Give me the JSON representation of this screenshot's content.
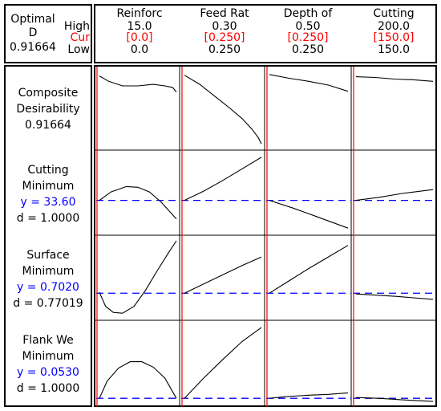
{
  "header": {
    "label_optimal": "Optimal",
    "label_d": "D",
    "d_value": "0.91664",
    "label_high": "High",
    "label_cur": "Cur",
    "label_low": "Low"
  },
  "factors": [
    {
      "name": "Reinforc",
      "high": "15.0",
      "cur": "[0.0]",
      "low": "0.0"
    },
    {
      "name": "Feed Rat",
      "high": "0.30",
      "cur": "[0.250]",
      "low": "0.250"
    },
    {
      "name": "Depth of",
      "high": "0.50",
      "cur": "[0.250]",
      "low": "0.250"
    },
    {
      "name": "Cutting",
      "high": "200.0",
      "cur": "[150.0]",
      "low": "150.0"
    }
  ],
  "rows": [
    {
      "lines": [
        "Composite",
        "Desirability",
        "0.91664"
      ],
      "y_label": "",
      "d_label": ""
    },
    {
      "lines": [
        "Cutting",
        "Minimum"
      ],
      "y_label": "y = 33.60",
      "d_label": "d = 1.0000"
    },
    {
      "lines": [
        "Surface",
        "Minimum"
      ],
      "y_label": "y = 0.7020",
      "d_label": "d = 0.77019"
    },
    {
      "lines": [
        "Flank We",
        "Minimum"
      ],
      "y_label": "y = 0.0530",
      "d_label": "d = 1.0000"
    }
  ],
  "colors": {
    "current": "#ff0000",
    "target": "#0000ff",
    "line": "#000000"
  },
  "chart_data": {
    "type": "line",
    "title": "",
    "factor_high": [
      15.0,
      0.3,
      0.5,
      200.0
    ],
    "factor_low": [
      0.0,
      0.25,
      0.25,
      150.0
    ],
    "factor_current": [
      0.0,
      0.25,
      0.25,
      150.0
    ],
    "panels": [
      [
        {
          "curve": [
            [
              0,
              0.93
            ],
            [
              0.12,
              0.86
            ],
            [
              0.3,
              0.8
            ],
            [
              0.5,
              0.8
            ],
            [
              0.7,
              0.82
            ],
            [
              0.85,
              0.8
            ],
            [
              0.95,
              0.78
            ],
            [
              1,
              0.72
            ]
          ]
        },
        {
          "curve": [
            [
              0,
              0.94
            ],
            [
              0.2,
              0.82
            ],
            [
              0.4,
              0.66
            ],
            [
              0.6,
              0.5
            ],
            [
              0.75,
              0.37
            ],
            [
              0.88,
              0.23
            ],
            [
              0.96,
              0.12
            ],
            [
              1,
              0.04
            ]
          ]
        },
        {
          "curve": [
            [
              0,
              0.95
            ],
            [
              0.25,
              0.9
            ],
            [
              0.5,
              0.86
            ],
            [
              0.75,
              0.81
            ],
            [
              1,
              0.73
            ]
          ]
        },
        {
          "curve": [
            [
              0,
              0.92
            ],
            [
              0.25,
              0.91
            ],
            [
              0.5,
              0.89
            ],
            [
              0.75,
              0.88
            ],
            [
              1,
              0.86
            ]
          ]
        }
      ],
      [
        {
          "curve": [
            [
              0,
              0.41
            ],
            [
              0.15,
              0.52
            ],
            [
              0.35,
              0.59
            ],
            [
              0.5,
              0.58
            ],
            [
              0.65,
              0.52
            ],
            [
              0.8,
              0.39
            ],
            [
              1,
              0.17
            ]
          ],
          "target": 0.41
        },
        {
          "curve": [
            [
              0,
              0.41
            ],
            [
              0.25,
              0.53
            ],
            [
              0.5,
              0.67
            ],
            [
              0.75,
              0.82
            ],
            [
              1,
              0.97
            ]
          ],
          "target": 0.41
        },
        {
          "curve": [
            [
              0,
              0.41
            ],
            [
              0.3,
              0.31
            ],
            [
              0.6,
              0.2
            ],
            [
              1,
              0.05
            ]
          ],
          "target": 0.41
        },
        {
          "curve": [
            [
              0,
              0.41
            ],
            [
              0.3,
              0.45
            ],
            [
              0.6,
              0.5
            ],
            [
              1,
              0.55
            ]
          ],
          "target": 0.41
        }
      ],
      [
        {
          "curve": [
            [
              0,
              0.32
            ],
            [
              0.08,
              0.14
            ],
            [
              0.18,
              0.06
            ],
            [
              0.3,
              0.05
            ],
            [
              0.45,
              0.14
            ],
            [
              0.6,
              0.35
            ],
            [
              0.75,
              0.6
            ],
            [
              0.9,
              0.84
            ],
            [
              1,
              0.99
            ]
          ],
          "target": 0.31
        },
        {
          "curve": [
            [
              0,
              0.31
            ],
            [
              0.25,
              0.43
            ],
            [
              0.5,
              0.55
            ],
            [
              0.75,
              0.67
            ],
            [
              1,
              0.78
            ]
          ],
          "target": 0.31
        },
        {
          "curve": [
            [
              0,
              0.31
            ],
            [
              0.25,
              0.47
            ],
            [
              0.5,
              0.63
            ],
            [
              0.75,
              0.78
            ],
            [
              1,
              0.93
            ]
          ],
          "target": 0.31
        },
        {
          "curve": [
            [
              0,
              0.3
            ],
            [
              0.5,
              0.27
            ],
            [
              1,
              0.23
            ]
          ],
          "target": 0.31
        }
      ],
      [
        {
          "curve": [
            [
              0,
              0.06
            ],
            [
              0.1,
              0.28
            ],
            [
              0.25,
              0.45
            ],
            [
              0.4,
              0.53
            ],
            [
              0.55,
              0.53
            ],
            [
              0.7,
              0.46
            ],
            [
              0.85,
              0.32
            ],
            [
              1,
              0.06
            ]
          ],
          "target": 0.06
        },
        {
          "curve": [
            [
              0,
              0.06
            ],
            [
              0.25,
              0.32
            ],
            [
              0.5,
              0.56
            ],
            [
              0.75,
              0.79
            ],
            [
              1,
              0.97
            ]
          ],
          "target": 0.06
        },
        {
          "curve": [
            [
              0,
              0.06
            ],
            [
              0.2,
              0.08
            ],
            [
              0.5,
              0.1
            ],
            [
              0.75,
              0.11
            ],
            [
              1,
              0.13
            ]
          ],
          "target": 0.06
        },
        {
          "curve": [
            [
              0,
              0.07
            ],
            [
              0.3,
              0.06
            ],
            [
              0.6,
              0.04
            ],
            [
              1,
              0.02
            ]
          ],
          "target": 0.06
        }
      ]
    ]
  }
}
